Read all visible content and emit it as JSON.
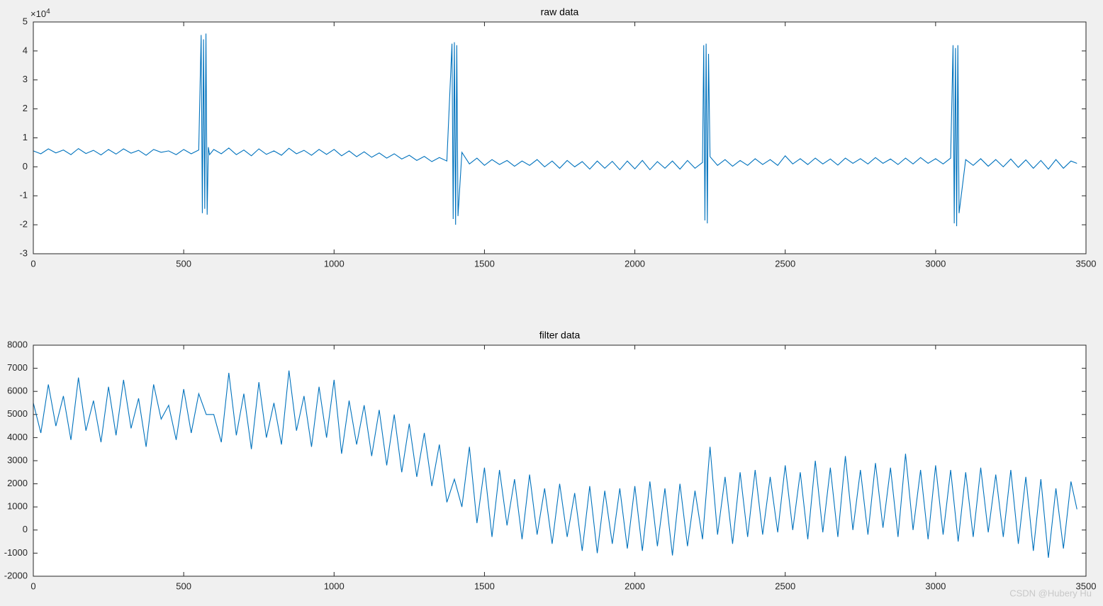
{
  "chart_data": [
    {
      "type": "line",
      "title": "raw data",
      "color": "#0072bd",
      "xlim": [
        0,
        3500
      ],
      "xticks": [
        0,
        500,
        1000,
        1500,
        2000,
        2500,
        3000,
        3500
      ],
      "ylim": [
        -3,
        5
      ],
      "yticks": [
        -3,
        -2,
        -1,
        0,
        1,
        2,
        3,
        4,
        5
      ],
      "y_exponent_base": "×10",
      "y_exponent": 4,
      "x": [
        0,
        25,
        50,
        75,
        100,
        125,
        150,
        175,
        200,
        225,
        250,
        275,
        300,
        325,
        350,
        375,
        400,
        425,
        450,
        475,
        500,
        525,
        550,
        558,
        562,
        566,
        570,
        574,
        578,
        582,
        586,
        600,
        625,
        650,
        675,
        700,
        725,
        750,
        775,
        800,
        825,
        850,
        875,
        900,
        925,
        950,
        975,
        1000,
        1025,
        1050,
        1075,
        1100,
        1125,
        1150,
        1175,
        1200,
        1225,
        1250,
        1275,
        1300,
        1325,
        1350,
        1375,
        1392,
        1396,
        1400,
        1404,
        1408,
        1412,
        1425,
        1450,
        1475,
        1500,
        1525,
        1550,
        1575,
        1600,
        1625,
        1650,
        1675,
        1700,
        1725,
        1750,
        1775,
        1800,
        1825,
        1850,
        1875,
        1900,
        1925,
        1950,
        1975,
        2000,
        2025,
        2050,
        2075,
        2100,
        2125,
        2150,
        2175,
        2200,
        2225,
        2229,
        2233,
        2237,
        2241,
        2245,
        2250,
        2275,
        2300,
        2325,
        2350,
        2375,
        2400,
        2425,
        2450,
        2475,
        2500,
        2525,
        2550,
        2575,
        2600,
        2625,
        2650,
        2675,
        2700,
        2725,
        2750,
        2775,
        2800,
        2825,
        2850,
        2875,
        2900,
        2925,
        2950,
        2975,
        3000,
        3025,
        3050,
        3058,
        3062,
        3066,
        3070,
        3074,
        3078,
        3100,
        3125,
        3150,
        3175,
        3200,
        3225,
        3250,
        3275,
        3300,
        3325,
        3350,
        3375,
        3400,
        3425,
        3450,
        3470
      ],
      "values": [
        0.55,
        0.45,
        0.62,
        0.48,
        0.58,
        0.42,
        0.63,
        0.46,
        0.57,
        0.41,
        0.6,
        0.44,
        0.62,
        0.47,
        0.57,
        0.4,
        0.6,
        0.5,
        0.55,
        0.42,
        0.6,
        0.45,
        0.58,
        4.55,
        -1.6,
        4.4,
        -1.45,
        4.6,
        -1.65,
        0.68,
        0.42,
        0.6,
        0.45,
        0.65,
        0.42,
        0.58,
        0.38,
        0.62,
        0.43,
        0.55,
        0.4,
        0.64,
        0.45,
        0.57,
        0.4,
        0.6,
        0.43,
        0.6,
        0.38,
        0.55,
        0.35,
        0.52,
        0.33,
        0.48,
        0.3,
        0.45,
        0.27,
        0.4,
        0.22,
        0.36,
        0.18,
        0.32,
        0.2,
        4.25,
        -1.8,
        4.3,
        -2.0,
        4.2,
        -1.7,
        0.5,
        0.1,
        0.3,
        0.05,
        0.25,
        0.08,
        0.22,
        0.02,
        0.2,
        0.05,
        0.25,
        0.0,
        0.2,
        -0.05,
        0.22,
        0.0,
        0.18,
        -0.08,
        0.2,
        -0.05,
        0.19,
        -0.1,
        0.2,
        -0.07,
        0.22,
        -0.1,
        0.18,
        -0.05,
        0.2,
        -0.08,
        0.22,
        -0.05,
        0.15,
        4.2,
        -1.85,
        4.25,
        -1.95,
        3.9,
        0.35,
        0.05,
        0.25,
        0.02,
        0.22,
        0.05,
        0.28,
        0.08,
        0.25,
        0.05,
        0.38,
        0.1,
        0.28,
        0.08,
        0.3,
        0.1,
        0.27,
        0.06,
        0.3,
        0.12,
        0.28,
        0.1,
        0.32,
        0.12,
        0.27,
        0.08,
        0.3,
        0.1,
        0.32,
        0.12,
        0.28,
        0.1,
        0.3,
        4.2,
        -1.95,
        4.1,
        -2.05,
        4.2,
        -1.6,
        0.25,
        0.05,
        0.28,
        0.02,
        0.25,
        0.0,
        0.27,
        -0.02,
        0.24,
        -0.05,
        0.22,
        -0.08,
        0.25,
        -0.05,
        0.2,
        0.12
      ]
    },
    {
      "type": "line",
      "title": "filter data",
      "color": "#0072bd",
      "xlim": [
        0,
        3500
      ],
      "xticks": [
        0,
        500,
        1000,
        1500,
        2000,
        2500,
        3000,
        3500
      ],
      "ylim": [
        -2000,
        8000
      ],
      "yticks": [
        -2000,
        -1000,
        0,
        1000,
        2000,
        3000,
        4000,
        5000,
        6000,
        7000,
        8000
      ],
      "x": [
        0,
        25,
        50,
        75,
        100,
        125,
        150,
        175,
        200,
        225,
        250,
        275,
        300,
        325,
        350,
        375,
        400,
        425,
        450,
        475,
        500,
        525,
        550,
        575,
        600,
        625,
        650,
        675,
        700,
        725,
        750,
        775,
        800,
        825,
        850,
        875,
        900,
        925,
        950,
        975,
        1000,
        1025,
        1050,
        1075,
        1100,
        1125,
        1150,
        1175,
        1200,
        1225,
        1250,
        1275,
        1300,
        1325,
        1350,
        1375,
        1400,
        1425,
        1450,
        1475,
        1500,
        1525,
        1550,
        1575,
        1600,
        1625,
        1650,
        1675,
        1700,
        1725,
        1750,
        1775,
        1800,
        1825,
        1850,
        1875,
        1900,
        1925,
        1950,
        1975,
        2000,
        2025,
        2050,
        2075,
        2100,
        2125,
        2150,
        2175,
        2200,
        2225,
        2250,
        2275,
        2300,
        2325,
        2350,
        2375,
        2400,
        2425,
        2450,
        2475,
        2500,
        2525,
        2550,
        2575,
        2600,
        2625,
        2650,
        2675,
        2700,
        2725,
        2750,
        2775,
        2800,
        2825,
        2850,
        2875,
        2900,
        2925,
        2950,
        2975,
        3000,
        3025,
        3050,
        3075,
        3100,
        3125,
        3150,
        3175,
        3200,
        3225,
        3250,
        3275,
        3300,
        3325,
        3350,
        3375,
        3400,
        3425,
        3450,
        3470
      ],
      "values": [
        5500,
        4200,
        6300,
        4500,
        5800,
        3900,
        6600,
        4300,
        5600,
        3800,
        6200,
        4100,
        6500,
        4400,
        5700,
        3600,
        6300,
        4800,
        5400,
        3900,
        6100,
        4200,
        5900,
        5000,
        5000,
        3800,
        6800,
        4100,
        5900,
        3500,
        6400,
        4000,
        5500,
        3700,
        6900,
        4300,
        5800,
        3600,
        6200,
        4000,
        6500,
        3300,
        5600,
        3700,
        5400,
        3200,
        5200,
        2800,
        5000,
        2500,
        4600,
        2300,
        4200,
        1900,
        3700,
        1200,
        2200,
        1000,
        3600,
        300,
        2700,
        -300,
        2600,
        200,
        2200,
        -400,
        2400,
        -200,
        1800,
        -600,
        2000,
        -300,
        1600,
        -900,
        1900,
        -1000,
        1700,
        -600,
        1800,
        -800,
        1900,
        -900,
        2100,
        -700,
        1800,
        -1100,
        2000,
        -700,
        1700,
        -400,
        3600,
        -200,
        2300,
        -600,
        2500,
        -300,
        2600,
        -200,
        2300,
        -100,
        2800,
        0,
        2500,
        -400,
        3000,
        -100,
        2700,
        -300,
        3200,
        0,
        2600,
        -200,
        2900,
        100,
        2700,
        -300,
        3300,
        0,
        2600,
        -400,
        2800,
        -200,
        2600,
        -500,
        2500,
        -300,
        2700,
        -100,
        2400,
        -300,
        2600,
        -600,
        2300,
        -900,
        2200,
        -1200,
        1800,
        -800,
        2100,
        900
      ]
    }
  ],
  "watermark": "CSDN @Hubery Hu"
}
